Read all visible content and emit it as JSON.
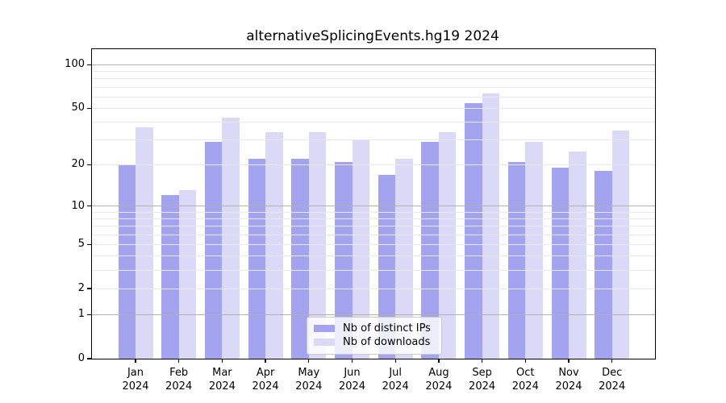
{
  "colors": {
    "distinct_ips_bar": "#a3a3ef",
    "downloads_bar": "#dadaf8",
    "major_gridline": "#b1b1b1",
    "minor_gridline": "#e9e9e9",
    "axis_spine": "#000000",
    "legend_border": "#cccccc"
  },
  "legend": {
    "items": [
      {
        "label": "Nb of distinct IPs",
        "color": "#a3a3ef"
      },
      {
        "label": "Nb of downloads",
        "color": "#dadaf8"
      }
    ]
  },
  "chart_data": {
    "type": "bar",
    "title": "alternativeSplicingEvents.hg19 2024",
    "xlabel": "",
    "ylabel": "",
    "categories": [
      "Jan 2024",
      "Feb 2024",
      "Mar 2024",
      "Apr 2024",
      "May 2024",
      "Jun 2024",
      "Jul 2024",
      "Aug 2024",
      "Sep 2024",
      "Oct 2024",
      "Nov 2024",
      "Dec 2024"
    ],
    "series": [
      {
        "name": "Nb of distinct IPs",
        "color": "#a3a3ef",
        "values": [
          20,
          12,
          29,
          22,
          22,
          21,
          17,
          29,
          54,
          21,
          19,
          18
        ]
      },
      {
        "name": "Nb of downloads",
        "color": "#dadaf8",
        "values": [
          37,
          13,
          43,
          34,
          34,
          30,
          22,
          34,
          63,
          29,
          25,
          35
        ]
      }
    ],
    "yscale": "log1p",
    "y_ticks": [
      0,
      1,
      2,
      5,
      10,
      20,
      50,
      100
    ],
    "y_major_gridlines": [
      1,
      10,
      100
    ],
    "y_minor_gridlines": [
      2,
      3,
      4,
      5,
      6,
      7,
      8,
      9,
      20,
      30,
      40,
      50,
      60,
      70,
      80,
      90
    ],
    "ylim": [
      0,
      128
    ],
    "grid": "on",
    "legend_position": "lower center (inside plot)"
  }
}
